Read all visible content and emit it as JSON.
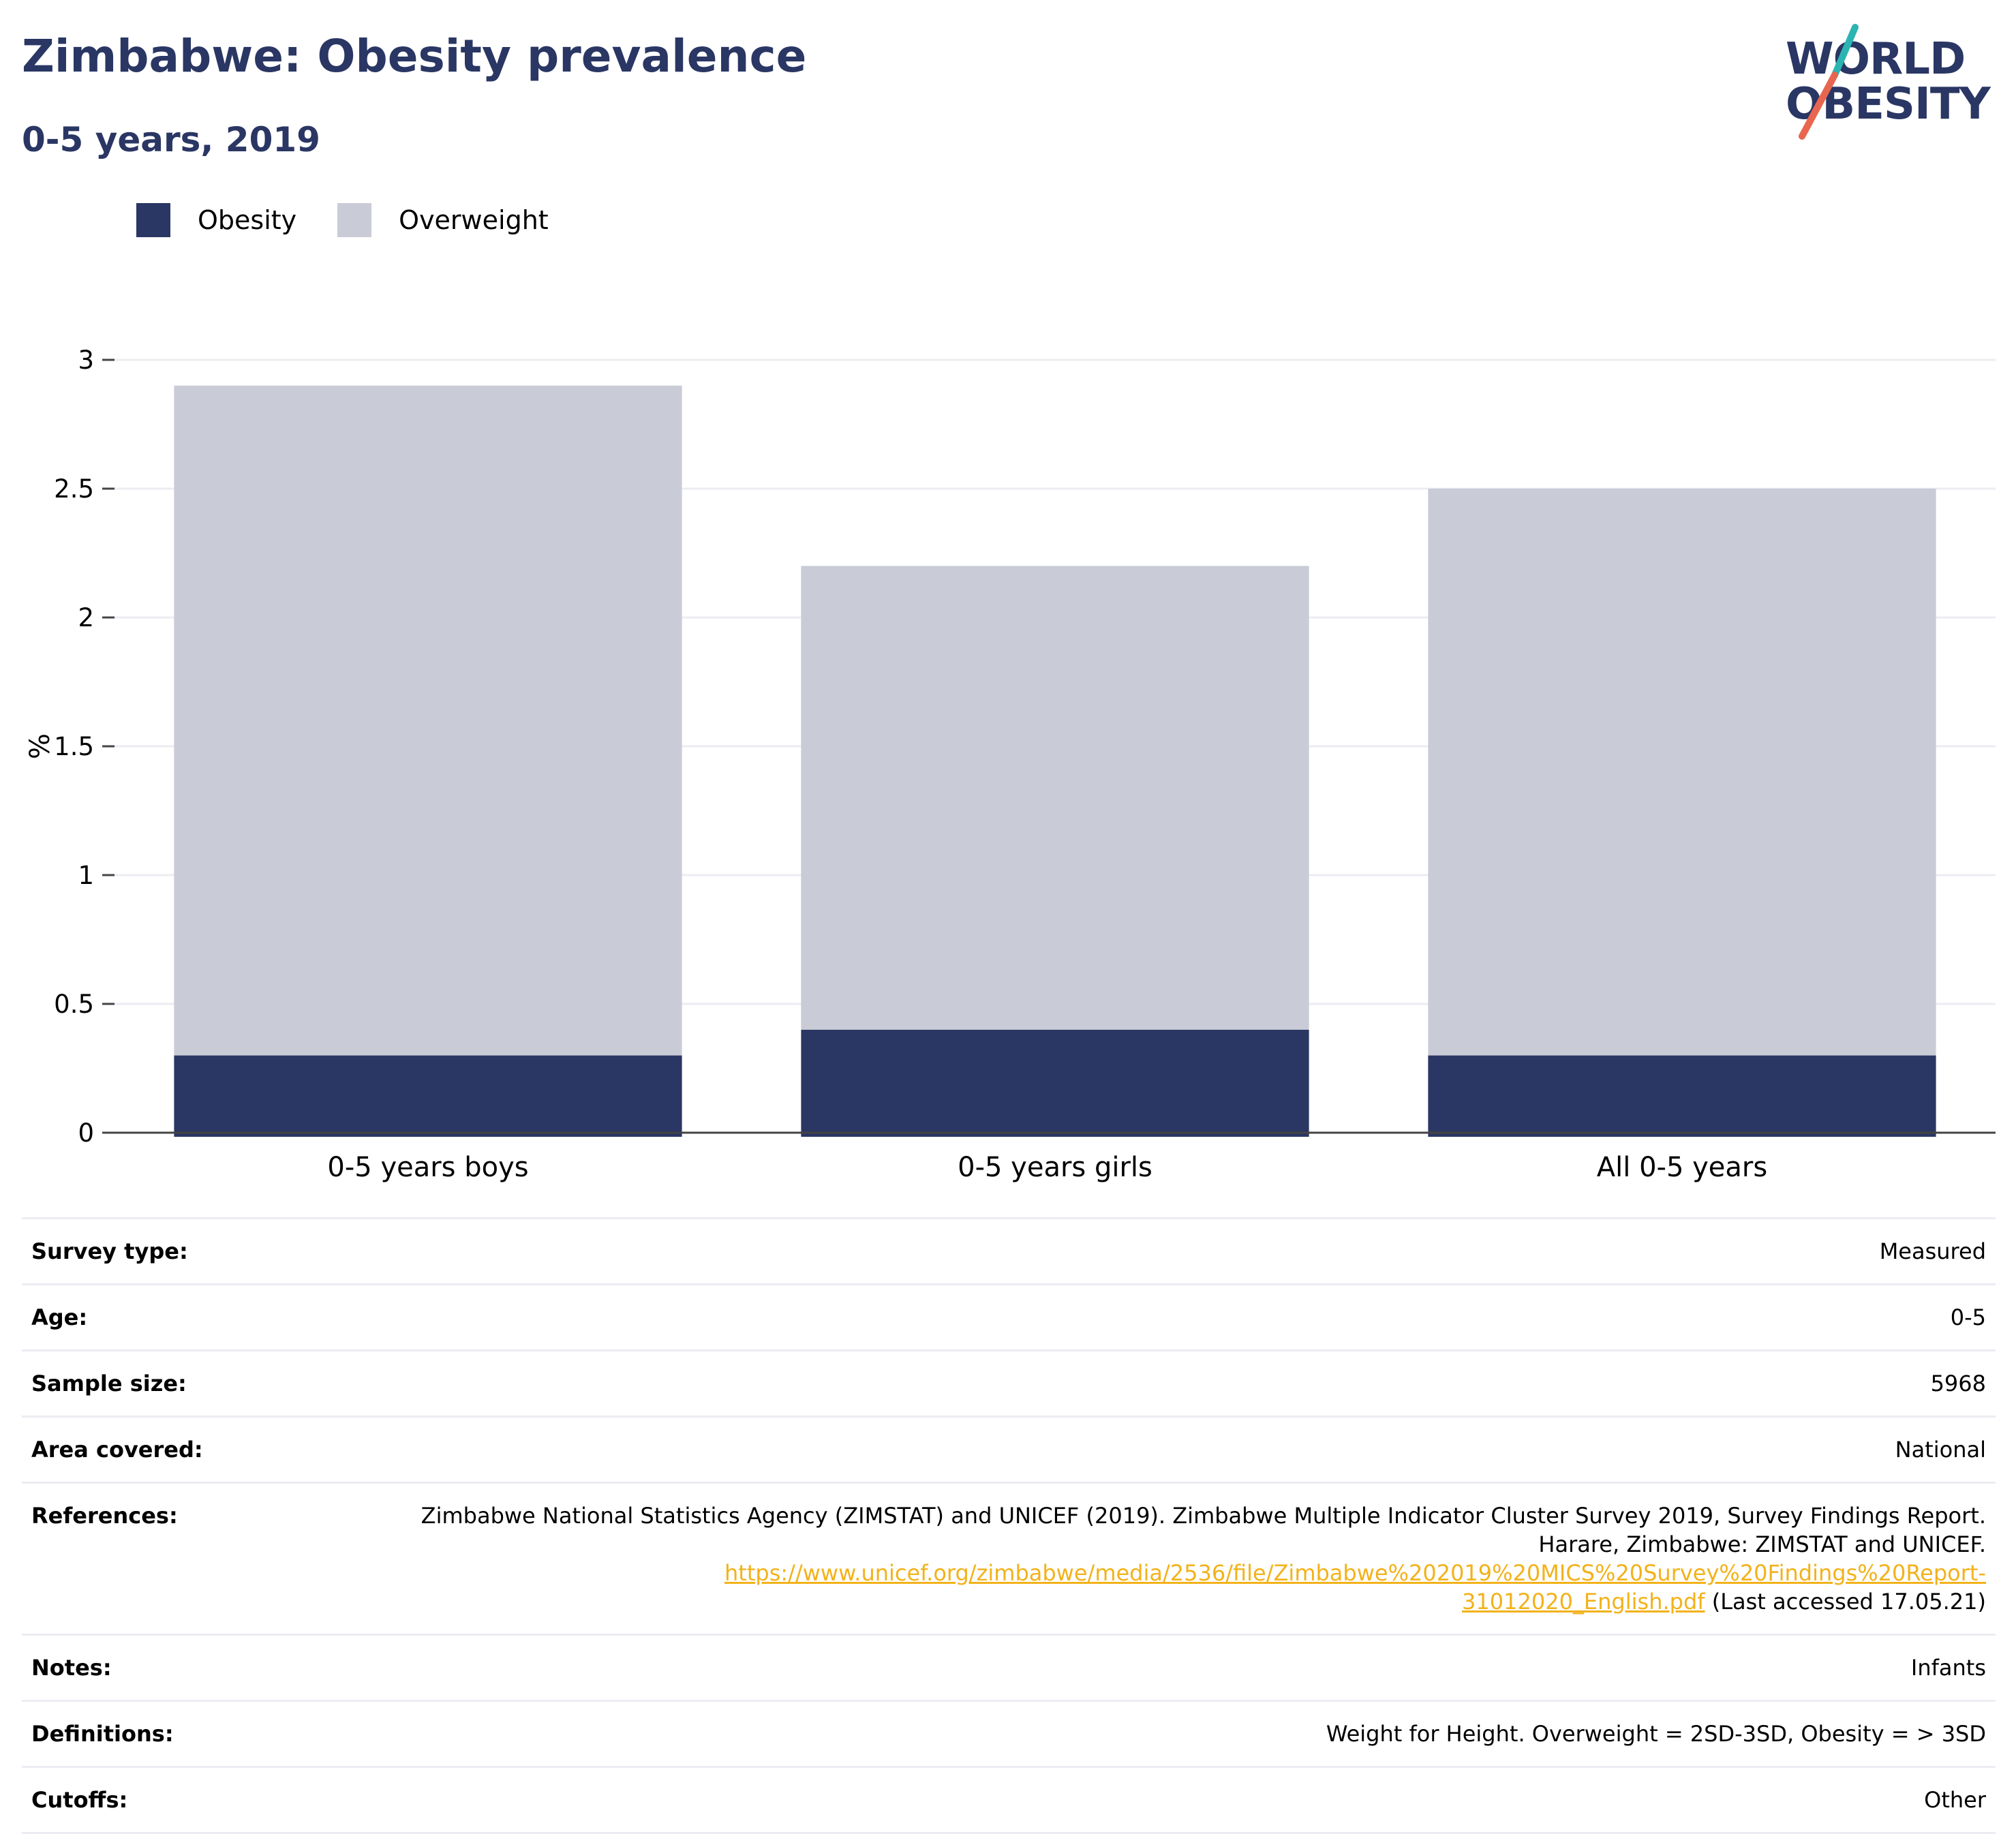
{
  "header": {
    "title": "Zimbabwe: Obesity prevalence",
    "subtitle": "0-5 years, 2019"
  },
  "logo": {
    "line1": "WORLD",
    "line2": "OBESITY",
    "colors": {
      "text": "#2a3663",
      "slash_top": "#2bb5b2",
      "slash_bottom": "#e8664f"
    }
  },
  "legend": [
    {
      "label": "Obesity",
      "color": "#2a3663"
    },
    {
      "label": "Overweight",
      "color": "#c9cbd6"
    }
  ],
  "chart_data": {
    "type": "bar",
    "stacked": true,
    "categories": [
      "0-5 years boys",
      "0-5 years girls",
      "All 0-5 years"
    ],
    "series": [
      {
        "name": "Obesity",
        "values": [
          0.3,
          0.4,
          0.3
        ],
        "color": "#2a3663"
      },
      {
        "name": "Overweight",
        "values": [
          2.6,
          1.8,
          2.2
        ],
        "color": "#c9cbd6"
      }
    ],
    "ylabel": "%",
    "ylim": [
      0,
      3
    ],
    "yticks": [
      "0",
      "0.5",
      "1",
      "1.5",
      "2",
      "2.5",
      "3"
    ],
    "grid": true,
    "legend_position": "top-left"
  },
  "info": {
    "survey_type": {
      "label": "Survey type:",
      "value": "Measured"
    },
    "age": {
      "label": "Age:",
      "value": "0-5"
    },
    "sample_size": {
      "label": "Sample size:",
      "value": "5968"
    },
    "area_covered": {
      "label": "Area covered:",
      "value": "National"
    },
    "references": {
      "label": "References:",
      "text": "Zimbabwe National Statistics Agency (ZIMSTAT) and UNICEF (2019). Zimbabwe Multiple Indicator Cluster Survey 2019, Survey Findings Report. Harare, Zimbabwe: ZIMSTAT and UNICEF.",
      "link_part1": "https://www.unicef.org/zimbabwe/media/2536/file/Zimbabwe%202019%20MICS%20Survey%20Findings%20Report-",
      "link_part2": "31012020_English.pdf",
      "suffix": " (Last accessed 17.05.21)"
    },
    "notes": {
      "label": "Notes:",
      "value": "Infants"
    },
    "definitions": {
      "label": "Definitions:",
      "value": "Weight for Height. Overweight = 2SD-3SD, Obesity = > 3SD"
    },
    "cutoffs": {
      "label": "Cutoffs:",
      "value": "Other"
    }
  }
}
